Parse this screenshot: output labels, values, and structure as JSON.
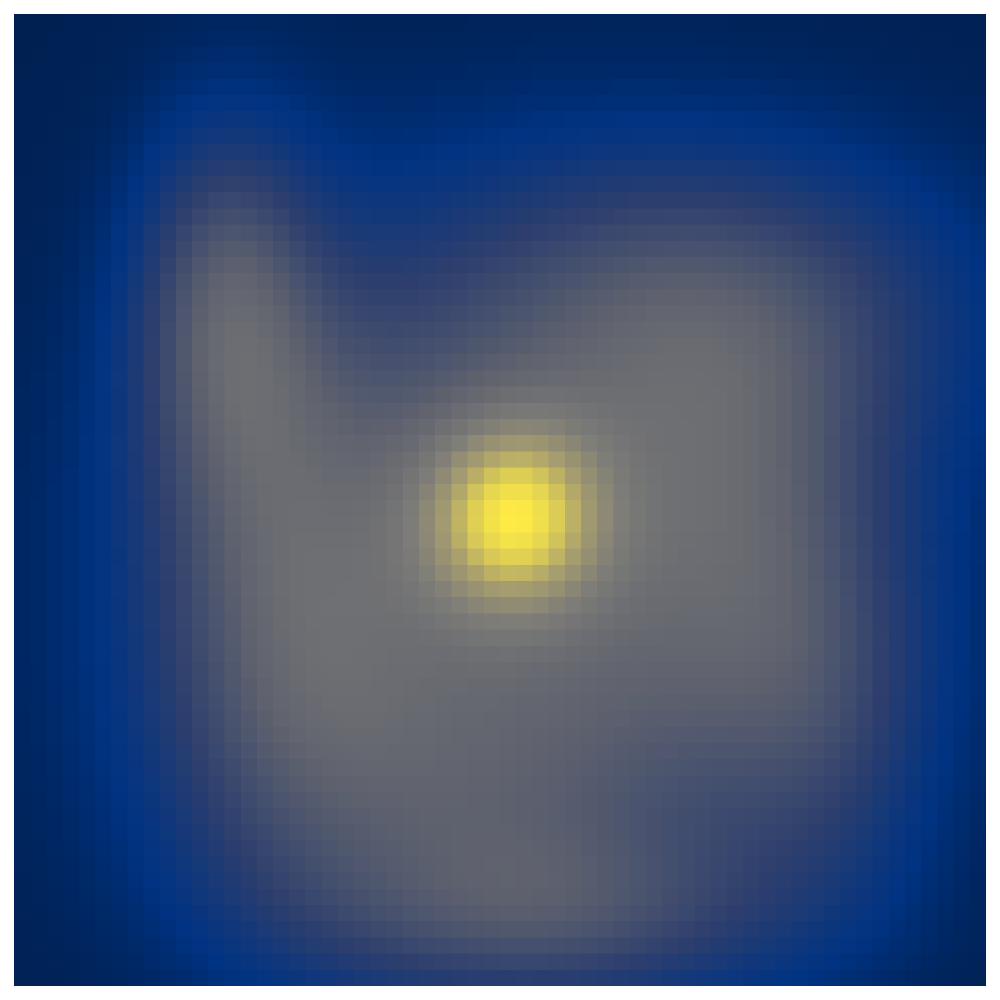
{
  "chart_data": {
    "type": "heatmap",
    "title": "",
    "xlabel": "",
    "ylabel": "",
    "colormap": "cividis",
    "colors": {
      "background": "#002051",
      "low": "#002051",
      "mid": "#7c7b78",
      "high": "#fdea45",
      "frame": "#ffffff"
    },
    "grid": false,
    "legend": "none",
    "rows": 60,
    "cols": 60,
    "value_range": [
      0,
      1
    ],
    "description_of_structure": "",
    "blobs": [
      {
        "cx": 30.3,
        "cy": 30.5,
        "sx": 4.0,
        "sy": 4.2,
        "amp": 0.62
      },
      {
        "cx": 30.0,
        "cy": 31.5,
        "sx": 14.5,
        "sy": 13.5,
        "amp": 0.48
      },
      {
        "cx": 12.5,
        "cy": 17.0,
        "sx": 4.0,
        "sy": 8.0,
        "amp": 0.4
      },
      {
        "cx": 43.0,
        "cy": 17.0,
        "sx": 12.0,
        "sy": 7.0,
        "amp": 0.32
      },
      {
        "cx": 45.0,
        "cy": 32.0,
        "sx": 7.0,
        "sy": 10.0,
        "amp": 0.28
      },
      {
        "cx": 28.0,
        "cy": 48.0,
        "sx": 12.0,
        "sy": 8.0,
        "amp": 0.3
      },
      {
        "cx": 33.0,
        "cy": 55.5,
        "sx": 11.0,
        "sy": 4.0,
        "amp": 0.26
      },
      {
        "cx": 16.0,
        "cy": 35.0,
        "sx": 6.0,
        "sy": 12.0,
        "amp": 0.3
      },
      {
        "cx": 50.0,
        "cy": 44.0,
        "sx": 5.0,
        "sy": 8.0,
        "amp": 0.18
      }
    ]
  }
}
